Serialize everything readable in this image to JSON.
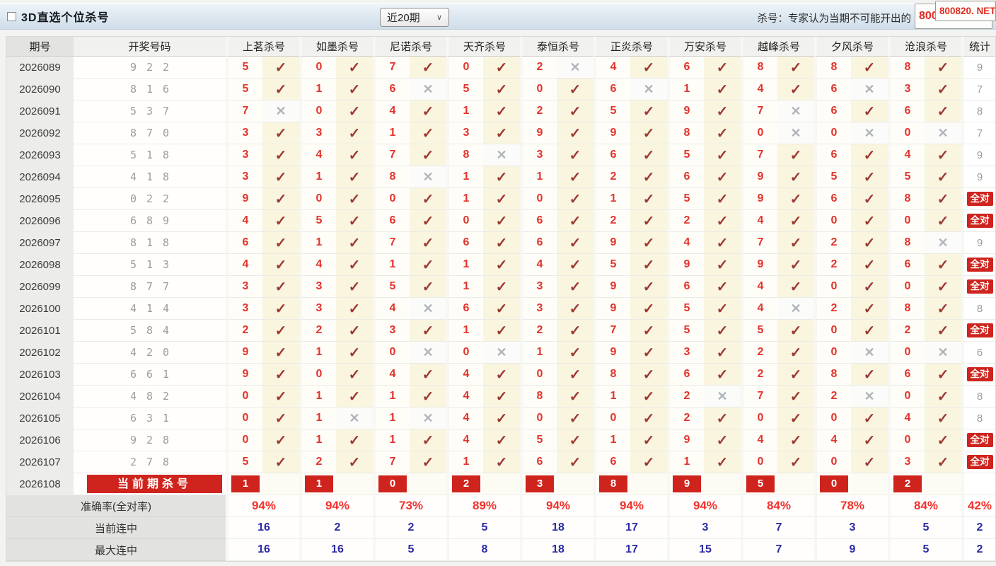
{
  "page": {
    "title": "3D直选个位杀号",
    "period_selector": "近20期",
    "note": "杀号：专家认为当期不可能开出的",
    "watermark": "800820. NET"
  },
  "table": {
    "headers": {
      "period": "期号",
      "draw": "开奖号码",
      "experts": [
        "上茗杀号",
        "如墨杀号",
        "尼诺杀号",
        "天齐杀号",
        "泰恒杀号",
        "正炎杀号",
        "万安杀号",
        "越峰杀号",
        "夕风杀号",
        "沧浪杀号"
      ],
      "stat": "统计"
    },
    "all_correct_label": "全对",
    "rows": [
      {
        "period": "2026089",
        "draw": "922",
        "kills": [
          {
            "n": "5",
            "ok": true
          },
          {
            "n": "0",
            "ok": true
          },
          {
            "n": "7",
            "ok": true
          },
          {
            "n": "0",
            "ok": true
          },
          {
            "n": "2",
            "ok": false
          },
          {
            "n": "4",
            "ok": true
          },
          {
            "n": "6",
            "ok": true
          },
          {
            "n": "8",
            "ok": true
          },
          {
            "n": "8",
            "ok": true
          },
          {
            "n": "8",
            "ok": true
          }
        ],
        "stat": "9"
      },
      {
        "period": "2026090",
        "draw": "816",
        "kills": [
          {
            "n": "5",
            "ok": true
          },
          {
            "n": "1",
            "ok": true
          },
          {
            "n": "6",
            "ok": false
          },
          {
            "n": "5",
            "ok": true
          },
          {
            "n": "0",
            "ok": true
          },
          {
            "n": "6",
            "ok": false
          },
          {
            "n": "1",
            "ok": true
          },
          {
            "n": "4",
            "ok": true
          },
          {
            "n": "6",
            "ok": false
          },
          {
            "n": "3",
            "ok": true
          }
        ],
        "stat": "7"
      },
      {
        "period": "2026091",
        "draw": "537",
        "kills": [
          {
            "n": "7",
            "ok": false
          },
          {
            "n": "0",
            "ok": true
          },
          {
            "n": "4",
            "ok": true
          },
          {
            "n": "1",
            "ok": true
          },
          {
            "n": "2",
            "ok": true
          },
          {
            "n": "5",
            "ok": true
          },
          {
            "n": "9",
            "ok": true
          },
          {
            "n": "7",
            "ok": false
          },
          {
            "n": "6",
            "ok": true
          },
          {
            "n": "6",
            "ok": true
          }
        ],
        "stat": "8"
      },
      {
        "period": "2026092",
        "draw": "870",
        "kills": [
          {
            "n": "3",
            "ok": true
          },
          {
            "n": "3",
            "ok": true
          },
          {
            "n": "1",
            "ok": true
          },
          {
            "n": "3",
            "ok": true
          },
          {
            "n": "9",
            "ok": true
          },
          {
            "n": "9",
            "ok": true
          },
          {
            "n": "8",
            "ok": true
          },
          {
            "n": "0",
            "ok": false
          },
          {
            "n": "0",
            "ok": false
          },
          {
            "n": "0",
            "ok": false
          }
        ],
        "stat": "7"
      },
      {
        "period": "2026093",
        "draw": "518",
        "kills": [
          {
            "n": "3",
            "ok": true
          },
          {
            "n": "4",
            "ok": true
          },
          {
            "n": "7",
            "ok": true
          },
          {
            "n": "8",
            "ok": false
          },
          {
            "n": "3",
            "ok": true
          },
          {
            "n": "6",
            "ok": true
          },
          {
            "n": "5",
            "ok": true
          },
          {
            "n": "7",
            "ok": true
          },
          {
            "n": "6",
            "ok": true
          },
          {
            "n": "4",
            "ok": true
          }
        ],
        "stat": "9"
      },
      {
        "period": "2026094",
        "draw": "418",
        "kills": [
          {
            "n": "3",
            "ok": true
          },
          {
            "n": "1",
            "ok": true
          },
          {
            "n": "8",
            "ok": false
          },
          {
            "n": "1",
            "ok": true
          },
          {
            "n": "1",
            "ok": true
          },
          {
            "n": "2",
            "ok": true
          },
          {
            "n": "6",
            "ok": true
          },
          {
            "n": "9",
            "ok": true
          },
          {
            "n": "5",
            "ok": true
          },
          {
            "n": "5",
            "ok": true
          }
        ],
        "stat": "9"
      },
      {
        "period": "2026095",
        "draw": "022",
        "kills": [
          {
            "n": "9",
            "ok": true
          },
          {
            "n": "0",
            "ok": true
          },
          {
            "n": "0",
            "ok": true
          },
          {
            "n": "1",
            "ok": true
          },
          {
            "n": "0",
            "ok": true
          },
          {
            "n": "1",
            "ok": true
          },
          {
            "n": "5",
            "ok": true
          },
          {
            "n": "9",
            "ok": true
          },
          {
            "n": "6",
            "ok": true
          },
          {
            "n": "8",
            "ok": true
          }
        ],
        "stat": "全对"
      },
      {
        "period": "2026096",
        "draw": "689",
        "kills": [
          {
            "n": "4",
            "ok": true
          },
          {
            "n": "5",
            "ok": true
          },
          {
            "n": "6",
            "ok": true
          },
          {
            "n": "0",
            "ok": true
          },
          {
            "n": "6",
            "ok": true
          },
          {
            "n": "2",
            "ok": true
          },
          {
            "n": "2",
            "ok": true
          },
          {
            "n": "4",
            "ok": true
          },
          {
            "n": "0",
            "ok": true
          },
          {
            "n": "0",
            "ok": true
          }
        ],
        "stat": "全对"
      },
      {
        "period": "2026097",
        "draw": "818",
        "kills": [
          {
            "n": "6",
            "ok": true
          },
          {
            "n": "1",
            "ok": true
          },
          {
            "n": "7",
            "ok": true
          },
          {
            "n": "6",
            "ok": true
          },
          {
            "n": "6",
            "ok": true
          },
          {
            "n": "9",
            "ok": true
          },
          {
            "n": "4",
            "ok": true
          },
          {
            "n": "7",
            "ok": true
          },
          {
            "n": "2",
            "ok": true
          },
          {
            "n": "8",
            "ok": false
          }
        ],
        "stat": "9"
      },
      {
        "period": "2026098",
        "draw": "513",
        "kills": [
          {
            "n": "4",
            "ok": true
          },
          {
            "n": "4",
            "ok": true
          },
          {
            "n": "1",
            "ok": true
          },
          {
            "n": "1",
            "ok": true
          },
          {
            "n": "4",
            "ok": true
          },
          {
            "n": "5",
            "ok": true
          },
          {
            "n": "9",
            "ok": true
          },
          {
            "n": "9",
            "ok": true
          },
          {
            "n": "2",
            "ok": true
          },
          {
            "n": "6",
            "ok": true
          }
        ],
        "stat": "全对"
      },
      {
        "period": "2026099",
        "draw": "877",
        "kills": [
          {
            "n": "3",
            "ok": true
          },
          {
            "n": "3",
            "ok": true
          },
          {
            "n": "5",
            "ok": true
          },
          {
            "n": "1",
            "ok": true
          },
          {
            "n": "3",
            "ok": true
          },
          {
            "n": "9",
            "ok": true
          },
          {
            "n": "6",
            "ok": true
          },
          {
            "n": "4",
            "ok": true
          },
          {
            "n": "0",
            "ok": true
          },
          {
            "n": "0",
            "ok": true
          }
        ],
        "stat": "全对"
      },
      {
        "period": "2026100",
        "draw": "414",
        "kills": [
          {
            "n": "3",
            "ok": true
          },
          {
            "n": "3",
            "ok": true
          },
          {
            "n": "4",
            "ok": false
          },
          {
            "n": "6",
            "ok": true
          },
          {
            "n": "3",
            "ok": true
          },
          {
            "n": "9",
            "ok": true
          },
          {
            "n": "5",
            "ok": true
          },
          {
            "n": "4",
            "ok": false
          },
          {
            "n": "2",
            "ok": true
          },
          {
            "n": "8",
            "ok": true
          }
        ],
        "stat": "8"
      },
      {
        "period": "2026101",
        "draw": "584",
        "kills": [
          {
            "n": "2",
            "ok": true
          },
          {
            "n": "2",
            "ok": true
          },
          {
            "n": "3",
            "ok": true
          },
          {
            "n": "1",
            "ok": true
          },
          {
            "n": "2",
            "ok": true
          },
          {
            "n": "7",
            "ok": true
          },
          {
            "n": "5",
            "ok": true
          },
          {
            "n": "5",
            "ok": true
          },
          {
            "n": "0",
            "ok": true
          },
          {
            "n": "2",
            "ok": true
          }
        ],
        "stat": "全对"
      },
      {
        "period": "2026102",
        "draw": "420",
        "kills": [
          {
            "n": "9",
            "ok": true
          },
          {
            "n": "1",
            "ok": true
          },
          {
            "n": "0",
            "ok": false
          },
          {
            "n": "0",
            "ok": false
          },
          {
            "n": "1",
            "ok": true
          },
          {
            "n": "9",
            "ok": true
          },
          {
            "n": "3",
            "ok": true
          },
          {
            "n": "2",
            "ok": true
          },
          {
            "n": "0",
            "ok": false
          },
          {
            "n": "0",
            "ok": false
          }
        ],
        "stat": "6"
      },
      {
        "period": "2026103",
        "draw": "661",
        "kills": [
          {
            "n": "9",
            "ok": true
          },
          {
            "n": "0",
            "ok": true
          },
          {
            "n": "4",
            "ok": true
          },
          {
            "n": "4",
            "ok": true
          },
          {
            "n": "0",
            "ok": true
          },
          {
            "n": "8",
            "ok": true
          },
          {
            "n": "6",
            "ok": true
          },
          {
            "n": "2",
            "ok": true
          },
          {
            "n": "8",
            "ok": true
          },
          {
            "n": "6",
            "ok": true
          }
        ],
        "stat": "全对"
      },
      {
        "period": "2026104",
        "draw": "482",
        "kills": [
          {
            "n": "0",
            "ok": true
          },
          {
            "n": "1",
            "ok": true
          },
          {
            "n": "1",
            "ok": true
          },
          {
            "n": "4",
            "ok": true
          },
          {
            "n": "8",
            "ok": true
          },
          {
            "n": "1",
            "ok": true
          },
          {
            "n": "2",
            "ok": false
          },
          {
            "n": "7",
            "ok": true
          },
          {
            "n": "2",
            "ok": false
          },
          {
            "n": "0",
            "ok": true
          }
        ],
        "stat": "8"
      },
      {
        "period": "2026105",
        "draw": "631",
        "kills": [
          {
            "n": "0",
            "ok": true
          },
          {
            "n": "1",
            "ok": false
          },
          {
            "n": "1",
            "ok": false
          },
          {
            "n": "4",
            "ok": true
          },
          {
            "n": "0",
            "ok": true
          },
          {
            "n": "0",
            "ok": true
          },
          {
            "n": "2",
            "ok": true
          },
          {
            "n": "0",
            "ok": true
          },
          {
            "n": "0",
            "ok": true
          },
          {
            "n": "4",
            "ok": true
          }
        ],
        "stat": "8"
      },
      {
        "period": "2026106",
        "draw": "928",
        "kills": [
          {
            "n": "0",
            "ok": true
          },
          {
            "n": "1",
            "ok": true
          },
          {
            "n": "1",
            "ok": true
          },
          {
            "n": "4",
            "ok": true
          },
          {
            "n": "5",
            "ok": true
          },
          {
            "n": "1",
            "ok": true
          },
          {
            "n": "9",
            "ok": true
          },
          {
            "n": "4",
            "ok": true
          },
          {
            "n": "4",
            "ok": true
          },
          {
            "n": "0",
            "ok": true
          }
        ],
        "stat": "全对"
      },
      {
        "period": "2026107",
        "draw": "278",
        "kills": [
          {
            "n": "5",
            "ok": true
          },
          {
            "n": "2",
            "ok": true
          },
          {
            "n": "7",
            "ok": true
          },
          {
            "n": "1",
            "ok": true
          },
          {
            "n": "6",
            "ok": true
          },
          {
            "n": "6",
            "ok": true
          },
          {
            "n": "1",
            "ok": true
          },
          {
            "n": "0",
            "ok": true
          },
          {
            "n": "0",
            "ok": true
          },
          {
            "n": "3",
            "ok": true
          }
        ],
        "stat": "全对"
      }
    ],
    "current_row": {
      "period": "2026108",
      "label": "当前期杀号",
      "kills": [
        "1",
        "1",
        "0",
        "2",
        "3",
        "8",
        "9",
        "5",
        "0",
        "2"
      ],
      "stat": ""
    },
    "summary": [
      {
        "key": "accuracy",
        "label": "准确率(全对率)",
        "values": [
          "94%",
          "94%",
          "73%",
          "89%",
          "94%",
          "94%",
          "94%",
          "84%",
          "78%",
          "84%"
        ],
        "stat": "42%"
      },
      {
        "key": "current_streak",
        "label": "当前连中",
        "values": [
          "16",
          "2",
          "2",
          "5",
          "18",
          "17",
          "3",
          "7",
          "3",
          "5"
        ],
        "stat": "2"
      },
      {
        "key": "max_streak",
        "label": "最大连中",
        "values": [
          "16",
          "16",
          "5",
          "8",
          "18",
          "17",
          "15",
          "7",
          "9",
          "5"
        ],
        "stat": "2"
      }
    ]
  }
}
